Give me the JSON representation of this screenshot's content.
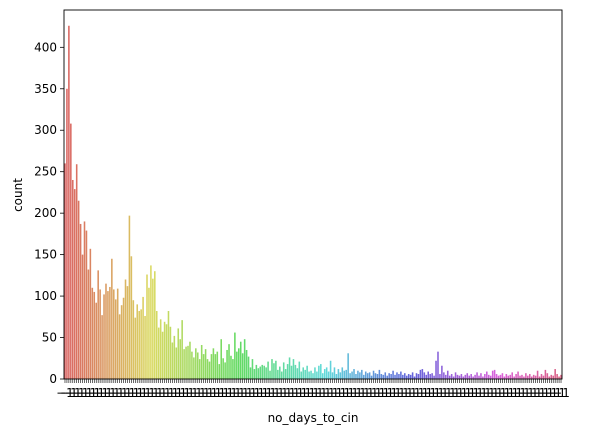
{
  "chart_data": {
    "type": "bar",
    "title": "",
    "xlabel": "no_days_to_cin",
    "ylabel": "count",
    "ylim": [
      0,
      445
    ],
    "yticks": [
      0,
      50,
      100,
      150,
      200,
      250,
      300,
      350,
      400
    ],
    "xtick_labels_note": "dense overlapping category tick labels (unreadable)",
    "xtick_visible_text": [
      "−1",
      "0"
    ],
    "palette": "husl rainbow (red → orange → olive → green → teal → blue → purple → pink)",
    "values": [
      260,
      350,
      426,
      308,
      240,
      229,
      259,
      215,
      187,
      150,
      190,
      179,
      132,
      157,
      110,
      105,
      92,
      131,
      108,
      77,
      102,
      115,
      106,
      111,
      145,
      108,
      96,
      109,
      78,
      89,
      98,
      120,
      112,
      197,
      148,
      95,
      74,
      90,
      82,
      84,
      99,
      76,
      126,
      110,
      137,
      121,
      130,
      82,
      62,
      72,
      57,
      69,
      66,
      82,
      63,
      44,
      52,
      38,
      61,
      48,
      71,
      36,
      39,
      40,
      45,
      33,
      26,
      37,
      32,
      24,
      41,
      30,
      36,
      24,
      21,
      30,
      37,
      30,
      33,
      18,
      48,
      25,
      20,
      35,
      42,
      28,
      24,
      56,
      33,
      37,
      45,
      31,
      48,
      35,
      27,
      14,
      24,
      12,
      17,
      13,
      15,
      17,
      16,
      14,
      21,
      10,
      24,
      19,
      22,
      11,
      15,
      9,
      20,
      12,
      18,
      26,
      16,
      24,
      17,
      13,
      21,
      9,
      14,
      11,
      16,
      9,
      10,
      7,
      14,
      9,
      16,
      18,
      7,
      12,
      14,
      9,
      22,
      8,
      14,
      6,
      12,
      8,
      14,
      10,
      11,
      31,
      7,
      9,
      12,
      6,
      10,
      8,
      11,
      5,
      9,
      7,
      8,
      4,
      10,
      7,
      6,
      11,
      6,
      5,
      8,
      4,
      7,
      6,
      10,
      5,
      8,
      6,
      9,
      5,
      7,
      4,
      6,
      5,
      8,
      3,
      7,
      6,
      11,
      12,
      8,
      5,
      9,
      6,
      7,
      4,
      22,
      33,
      6,
      16,
      8,
      5,
      10,
      4,
      6,
      3,
      8,
      5,
      4,
      6,
      3,
      5,
      7,
      4,
      6,
      3,
      5,
      8,
      4,
      7,
      3,
      6,
      9,
      5,
      4,
      10,
      11,
      6,
      4,
      5,
      7,
      3,
      6,
      4,
      5,
      8,
      3,
      6,
      9,
      4,
      5,
      3,
      7,
      4,
      6,
      3,
      5,
      4,
      10,
      3,
      6,
      4,
      11,
      7,
      3,
      5,
      4,
      12,
      6,
      3,
      5
    ]
  }
}
